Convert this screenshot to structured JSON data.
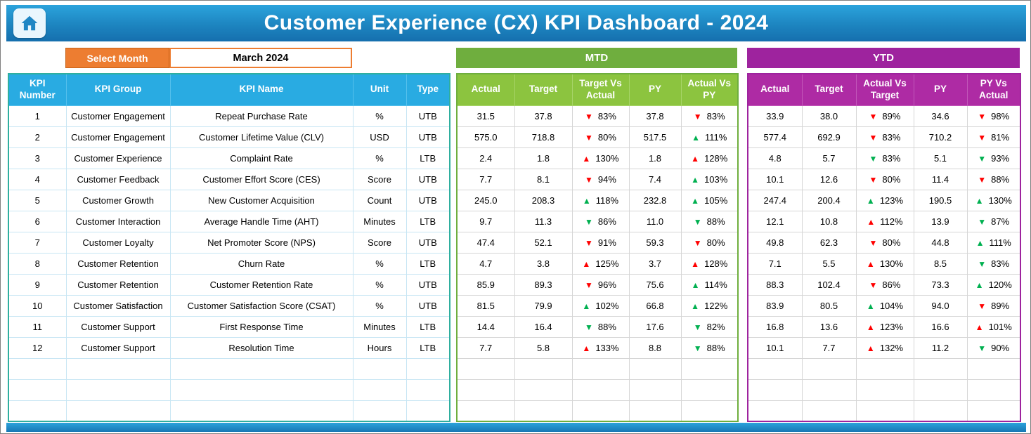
{
  "header": {
    "title": "Customer Experience (CX) KPI Dashboard - 2024"
  },
  "controls": {
    "select_month_label": "Select Month",
    "selected_month": "March 2024"
  },
  "sections": {
    "mtd_label": "MTD",
    "ytd_label": "YTD"
  },
  "icons": {
    "home": "home-icon",
    "up_arrow": "▲",
    "down_arrow": "▼"
  },
  "colors": {
    "banner_blue_top": "#2BA3DC",
    "banner_blue_bottom": "#1777B4",
    "table_header_blue": "#29ABE2",
    "mtd_section_green": "#6FAE3E",
    "mtd_header_green": "#8CC43F",
    "ytd_section_purple": "#9E239E",
    "ytd_header_purple": "#AE2BA4",
    "select_month_orange": "#ED7D31",
    "bad_red": "#FF0000",
    "good_green": "#00B050"
  },
  "kpi_table": {
    "headers": [
      "KPI Number",
      "KPI Group",
      "KPI Name",
      "Unit",
      "Type"
    ],
    "mtd_headers": [
      "Actual",
      "Target",
      "Target Vs Actual",
      "PY",
      "Actual Vs PY"
    ],
    "ytd_headers": [
      "Actual",
      "Target",
      "Actual Vs Target",
      "PY",
      "PY Vs Actual"
    ],
    "empty_rows": 3,
    "rows": [
      {
        "number": "1",
        "group": "Customer Engagement",
        "name": "Repeat Purchase Rate",
        "unit": "%",
        "type": "UTB",
        "mtd": {
          "actual": "31.5",
          "target": "37.8",
          "target_vs_actual": {
            "trend": "down",
            "color": "red",
            "value": "83%"
          },
          "py": "37.8",
          "actual_vs_py": {
            "trend": "down",
            "color": "red",
            "value": "83%"
          }
        },
        "ytd": {
          "actual": "33.9",
          "target": "38.0",
          "actual_vs_target": {
            "trend": "down",
            "color": "red",
            "value": "89%"
          },
          "py": "34.6",
          "py_vs_actual": {
            "trend": "down",
            "color": "red",
            "value": "98%"
          }
        }
      },
      {
        "number": "2",
        "group": "Customer Engagement",
        "name": "Customer Lifetime Value (CLV)",
        "unit": "USD",
        "type": "UTB",
        "mtd": {
          "actual": "575.0",
          "target": "718.8",
          "target_vs_actual": {
            "trend": "down",
            "color": "red",
            "value": "80%"
          },
          "py": "517.5",
          "actual_vs_py": {
            "trend": "up",
            "color": "green",
            "value": "111%"
          }
        },
        "ytd": {
          "actual": "577.4",
          "target": "692.9",
          "actual_vs_target": {
            "trend": "down",
            "color": "red",
            "value": "83%"
          },
          "py": "710.2",
          "py_vs_actual": {
            "trend": "down",
            "color": "red",
            "value": "81%"
          }
        }
      },
      {
        "number": "3",
        "group": "Customer Experience",
        "name": "Complaint Rate",
        "unit": "%",
        "type": "LTB",
        "mtd": {
          "actual": "2.4",
          "target": "1.8",
          "target_vs_actual": {
            "trend": "up",
            "color": "red",
            "value": "130%"
          },
          "py": "1.8",
          "actual_vs_py": {
            "trend": "up",
            "color": "red",
            "value": "128%"
          }
        },
        "ytd": {
          "actual": "4.8",
          "target": "5.7",
          "actual_vs_target": {
            "trend": "down",
            "color": "green",
            "value": "83%"
          },
          "py": "5.1",
          "py_vs_actual": {
            "trend": "down",
            "color": "green",
            "value": "93%"
          }
        }
      },
      {
        "number": "4",
        "group": "Customer Feedback",
        "name": "Customer Effort Score (CES)",
        "unit": "Score",
        "type": "UTB",
        "mtd": {
          "actual": "7.7",
          "target": "8.1",
          "target_vs_actual": {
            "trend": "down",
            "color": "red",
            "value": "94%"
          },
          "py": "7.4",
          "actual_vs_py": {
            "trend": "up",
            "color": "green",
            "value": "103%"
          }
        },
        "ytd": {
          "actual": "10.1",
          "target": "12.6",
          "actual_vs_target": {
            "trend": "down",
            "color": "red",
            "value": "80%"
          },
          "py": "11.4",
          "py_vs_actual": {
            "trend": "down",
            "color": "red",
            "value": "88%"
          }
        }
      },
      {
        "number": "5",
        "group": "Customer Growth",
        "name": "New Customer Acquisition",
        "unit": "Count",
        "type": "UTB",
        "mtd": {
          "actual": "245.0",
          "target": "208.3",
          "target_vs_actual": {
            "trend": "up",
            "color": "green",
            "value": "118%"
          },
          "py": "232.8",
          "actual_vs_py": {
            "trend": "up",
            "color": "green",
            "value": "105%"
          }
        },
        "ytd": {
          "actual": "247.4",
          "target": "200.4",
          "actual_vs_target": {
            "trend": "up",
            "color": "green",
            "value": "123%"
          },
          "py": "190.5",
          "py_vs_actual": {
            "trend": "up",
            "color": "green",
            "value": "130%"
          }
        }
      },
      {
        "number": "6",
        "group": "Customer Interaction",
        "name": "Average Handle Time (AHT)",
        "unit": "Minutes",
        "type": "LTB",
        "mtd": {
          "actual": "9.7",
          "target": "11.3",
          "target_vs_actual": {
            "trend": "down",
            "color": "green",
            "value": "86%"
          },
          "py": "11.0",
          "actual_vs_py": {
            "trend": "down",
            "color": "green",
            "value": "88%"
          }
        },
        "ytd": {
          "actual": "12.1",
          "target": "10.8",
          "actual_vs_target": {
            "trend": "up",
            "color": "red",
            "value": "112%"
          },
          "py": "13.9",
          "py_vs_actual": {
            "trend": "down",
            "color": "green",
            "value": "87%"
          }
        }
      },
      {
        "number": "7",
        "group": "Customer Loyalty",
        "name": "Net Promoter Score (NPS)",
        "unit": "Score",
        "type": "UTB",
        "mtd": {
          "actual": "47.4",
          "target": "52.1",
          "target_vs_actual": {
            "trend": "down",
            "color": "red",
            "value": "91%"
          },
          "py": "59.3",
          "actual_vs_py": {
            "trend": "down",
            "color": "red",
            "value": "80%"
          }
        },
        "ytd": {
          "actual": "49.8",
          "target": "62.3",
          "actual_vs_target": {
            "trend": "down",
            "color": "red",
            "value": "80%"
          },
          "py": "44.8",
          "py_vs_actual": {
            "trend": "up",
            "color": "green",
            "value": "111%"
          }
        }
      },
      {
        "number": "8",
        "group": "Customer Retention",
        "name": "Churn Rate",
        "unit": "%",
        "type": "LTB",
        "mtd": {
          "actual": "4.7",
          "target": "3.8",
          "target_vs_actual": {
            "trend": "up",
            "color": "red",
            "value": "125%"
          },
          "py": "3.7",
          "actual_vs_py": {
            "trend": "up",
            "color": "red",
            "value": "128%"
          }
        },
        "ytd": {
          "actual": "7.1",
          "target": "5.5",
          "actual_vs_target": {
            "trend": "up",
            "color": "red",
            "value": "130%"
          },
          "py": "8.5",
          "py_vs_actual": {
            "trend": "down",
            "color": "green",
            "value": "83%"
          }
        }
      },
      {
        "number": "9",
        "group": "Customer Retention",
        "name": "Customer Retention Rate",
        "unit": "%",
        "type": "UTB",
        "mtd": {
          "actual": "85.9",
          "target": "89.3",
          "target_vs_actual": {
            "trend": "down",
            "color": "red",
            "value": "96%"
          },
          "py": "75.6",
          "actual_vs_py": {
            "trend": "up",
            "color": "green",
            "value": "114%"
          }
        },
        "ytd": {
          "actual": "88.3",
          "target": "102.4",
          "actual_vs_target": {
            "trend": "down",
            "color": "red",
            "value": "86%"
          },
          "py": "73.3",
          "py_vs_actual": {
            "trend": "up",
            "color": "green",
            "value": "120%"
          }
        }
      },
      {
        "number": "10",
        "group": "Customer Satisfaction",
        "name": "Customer Satisfaction Score (CSAT)",
        "unit": "%",
        "type": "UTB",
        "mtd": {
          "actual": "81.5",
          "target": "79.9",
          "target_vs_actual": {
            "trend": "up",
            "color": "green",
            "value": "102%"
          },
          "py": "66.8",
          "actual_vs_py": {
            "trend": "up",
            "color": "green",
            "value": "122%"
          }
        },
        "ytd": {
          "actual": "83.9",
          "target": "80.5",
          "actual_vs_target": {
            "trend": "up",
            "color": "green",
            "value": "104%"
          },
          "py": "94.0",
          "py_vs_actual": {
            "trend": "down",
            "color": "red",
            "value": "89%"
          }
        }
      },
      {
        "number": "11",
        "group": "Customer Support",
        "name": "First Response Time",
        "unit": "Minutes",
        "type": "LTB",
        "mtd": {
          "actual": "14.4",
          "target": "16.4",
          "target_vs_actual": {
            "trend": "down",
            "color": "green",
            "value": "88%"
          },
          "py": "17.6",
          "actual_vs_py": {
            "trend": "down",
            "color": "green",
            "value": "82%"
          }
        },
        "ytd": {
          "actual": "16.8",
          "target": "13.6",
          "actual_vs_target": {
            "trend": "up",
            "color": "red",
            "value": "123%"
          },
          "py": "16.6",
          "py_vs_actual": {
            "trend": "up",
            "color": "red",
            "value": "101%"
          }
        }
      },
      {
        "number": "12",
        "group": "Customer Support",
        "name": "Resolution Time",
        "unit": "Hours",
        "type": "LTB",
        "mtd": {
          "actual": "7.7",
          "target": "5.8",
          "target_vs_actual": {
            "trend": "up",
            "color": "red",
            "value": "133%"
          },
          "py": "8.8",
          "actual_vs_py": {
            "trend": "down",
            "color": "green",
            "value": "88%"
          }
        },
        "ytd": {
          "actual": "10.1",
          "target": "7.7",
          "actual_vs_target": {
            "trend": "up",
            "color": "red",
            "value": "132%"
          },
          "py": "11.2",
          "py_vs_actual": {
            "trend": "down",
            "color": "green",
            "value": "90%"
          }
        }
      }
    ]
  }
}
